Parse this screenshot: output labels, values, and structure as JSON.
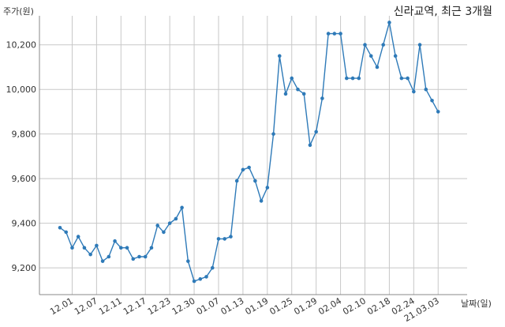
{
  "chart_data": {
    "type": "line",
    "title": "신라교역, 최근 3개월",
    "ylabel": "주가(원)",
    "xlabel": "날짜(일)",
    "ylim": [
      9080,
      10330
    ],
    "yticks": [
      9200,
      9400,
      9600,
      9800,
      10000,
      10200
    ],
    "ytick_labels": [
      "9,200",
      "9,400",
      "9,600",
      "9,800",
      "10,000",
      "10,200"
    ],
    "xtick_labels": [
      "12.01",
      "12.07",
      "12.11",
      "12.17",
      "12.23",
      "12.30",
      "01.07",
      "01.13",
      "01.19",
      "01.25",
      "01.29",
      "02.04",
      "02.10",
      "02.18",
      "02.24",
      "21.03.03"
    ],
    "xtick_indices": [
      2,
      6,
      10,
      14,
      18,
      22,
      26,
      30,
      34,
      38,
      42,
      46,
      50,
      54,
      58,
      62
    ],
    "grid": true,
    "color": "#2e7ab8",
    "series": [
      {
        "values": [
          9380,
          9360,
          9290,
          9340,
          9290,
          9260,
          9300,
          9230,
          9250,
          9320,
          9290,
          9290,
          9240,
          9250,
          9250,
          9290,
          9390,
          9360,
          9400,
          9420,
          9470,
          9230,
          9140,
          9150,
          9160,
          9200,
          9330,
          9330,
          9340,
          9590,
          9640,
          9650,
          9590,
          9500,
          9560,
          9800,
          10150,
          9980,
          10050,
          10000,
          9980,
          9750,
          9810,
          9960,
          10250,
          10250,
          10250,
          10050,
          10050,
          10050,
          10200,
          10150,
          10100,
          10200,
          10300,
          10150,
          10050,
          10050,
          9990,
          10200,
          10000,
          9950,
          9900
        ]
      }
    ]
  }
}
